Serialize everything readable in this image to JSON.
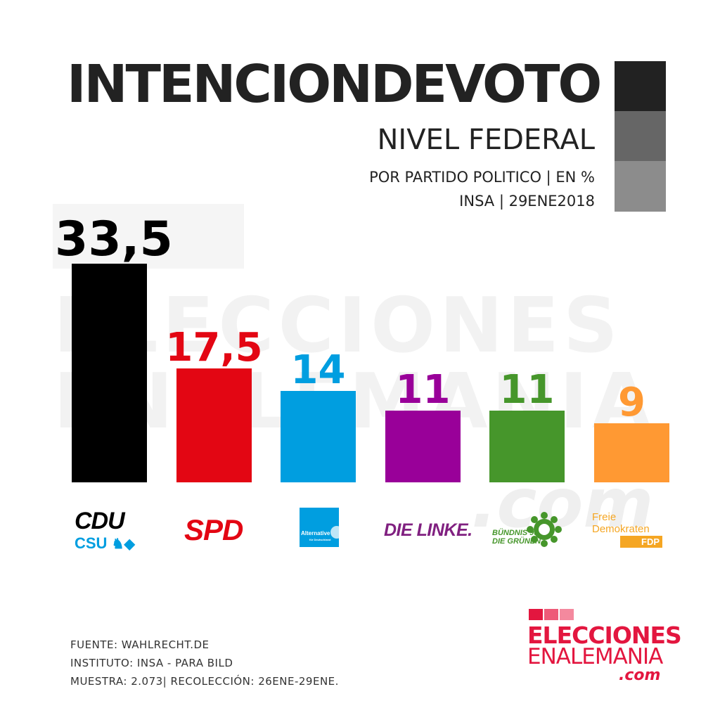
{
  "header": {
    "title": "INTENCIONDEVOTO",
    "subtitle": "NIVEL FEDERAL",
    "detail": "POR PARTIDO POLITICO | EN %",
    "source_line": "INSA | 29ENE2018"
  },
  "watermark": {
    "line1": "ELECCIONES",
    "line2": "ENALEMANIA",
    "line3": ".com"
  },
  "chart_data": {
    "type": "bar",
    "categories": [
      "CDU/CSU",
      "SPD",
      "AfD",
      "DIE LINKE",
      "BÜNDNIS 90 / DIE GRÜNEN",
      "FDP"
    ],
    "values": [
      33.5,
      17.5,
      14,
      11,
      11,
      9
    ],
    "value_labels": [
      "33,5",
      "17,5",
      "14",
      "11",
      "11",
      "9"
    ],
    "colors": [
      "#000000",
      "#e30613",
      "#009ee0",
      "#990099",
      "#46962b",
      "#ff9933"
    ],
    "ylim": [
      0,
      33.5
    ],
    "grid": false,
    "legend": "none"
  },
  "logos": {
    "cdu": "CDU",
    "csu": "CSU",
    "spd": "SPD",
    "afd_line1": "Alternative",
    "afd_line2": "für Deutschland",
    "linke": "DIE LINKE.",
    "gruene_line1": "BÜNDNIS 90",
    "gruene_line2": "DIE GRÜNEN",
    "fdp_line1": "Freie",
    "fdp_line2": "Demokraten",
    "fdp_line3": "FDP"
  },
  "footer": {
    "fuente": "FUENTE: WAHLRECHT.DE",
    "instituto": "INSTITUTO: INSA - PARA BILD",
    "muestra": "MUESTRA: 2.073| RECOLECCIÓN: 26ENE-29ENE."
  },
  "brand": {
    "line1": "ELECCIONES",
    "line2": "ENALEMANIA",
    "line3": ".com",
    "color": "#e3163f"
  }
}
